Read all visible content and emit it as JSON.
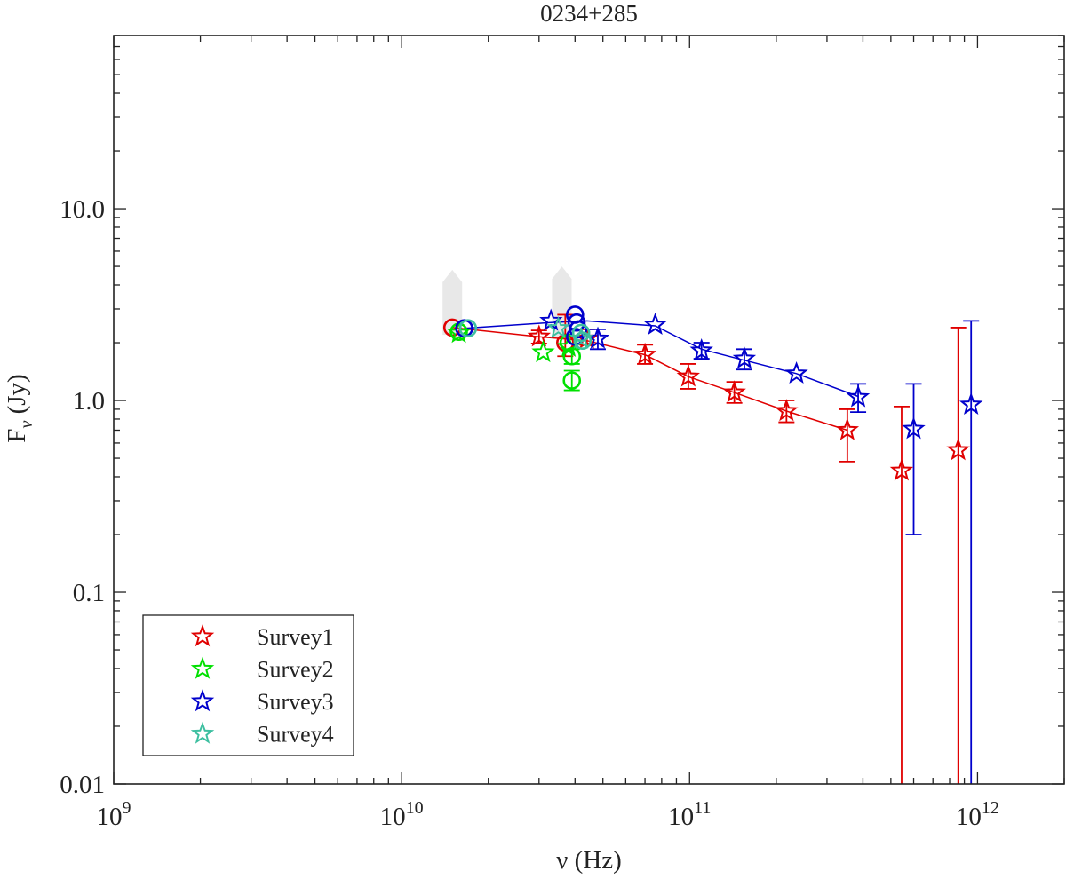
{
  "chart_data": {
    "type": "scatter",
    "title": "0234+285",
    "xlabel": "ν (Hz)",
    "ylabel": "Fν (Jy)",
    "xscale": "log",
    "yscale": "log",
    "xlim": [
      1000000000,
      2000000000000
    ],
    "ylim": [
      0.01,
      80
    ],
    "x_ticks": [
      {
        "value": 1000000000,
        "base": "10",
        "exp": "9"
      },
      {
        "value": 10000000000,
        "base": "10",
        "exp": "10"
      },
      {
        "value": 100000000000,
        "base": "10",
        "exp": "11"
      },
      {
        "value": 1000000000000,
        "base": "10",
        "exp": "12"
      }
    ],
    "y_ticks": [
      {
        "value": 0.01,
        "label": "0.01"
      },
      {
        "value": 0.1,
        "label": "0.1"
      },
      {
        "value": 1,
        "label": "1.0"
      },
      {
        "value": 10,
        "label": "10.0"
      }
    ],
    "legend": {
      "position": "bottom-left",
      "entries": [
        {
          "name": "Survey1",
          "color": "#e00000"
        },
        {
          "name": "Survey2",
          "color": "#00e000"
        },
        {
          "name": "Survey3",
          "color": "#0000cc"
        },
        {
          "name": "Survey4",
          "color": "#3dbfa0"
        }
      ]
    },
    "upper_limits": [
      {
        "x": 15000000000,
        "y_low": 2.2,
        "y_high": 4.8
      },
      {
        "x": 36000000000,
        "y_low": 2.1,
        "y_high": 5.0
      }
    ],
    "series": [
      {
        "name": "Survey1",
        "color": "#e00000",
        "line": [
          [
            15000000000,
            2.4
          ],
          [
            30000000000,
            2.15
          ],
          [
            44000000000,
            2.05
          ],
          [
            70000000000,
            1.73
          ],
          [
            99000000000,
            1.33
          ],
          [
            143000000000,
            1.1
          ],
          [
            217000000000,
            0.88
          ],
          [
            353000000000,
            0.7
          ]
        ],
        "stars": [
          {
            "x": 30000000000,
            "y": 2.15,
            "lo": 1.98,
            "hi": 2.32
          },
          {
            "x": 44000000000,
            "y": 2.1,
            "lo": 1.95,
            "hi": 2.35
          },
          {
            "x": 70000000000,
            "y": 1.73,
            "lo": 1.55,
            "hi": 1.95
          },
          {
            "x": 99000000000,
            "y": 1.33,
            "lo": 1.15,
            "hi": 1.55
          },
          {
            "x": 143000000000,
            "y": 1.1,
            "lo": 0.97,
            "hi": 1.25
          },
          {
            "x": 217000000000,
            "y": 0.88,
            "lo": 0.77,
            "hi": 1.0
          },
          {
            "x": 353000000000,
            "y": 0.7,
            "lo": 0.48,
            "hi": 0.9
          },
          {
            "x": 545000000000,
            "y": 0.43,
            "lo": 0.01,
            "hi": 0.93
          },
          {
            "x": 857000000000,
            "y": 0.55,
            "lo": 0.01,
            "hi": 2.4
          }
        ],
        "circles": [
          {
            "x": 15000000000,
            "y": 2.4
          },
          {
            "x": 37000000000,
            "y": 2.0,
            "lo": 1.7,
            "hi": 2.8
          }
        ]
      },
      {
        "name": "Survey2",
        "color": "#00e000",
        "line": [],
        "stars": [
          {
            "x": 15800000000,
            "y": 2.25
          },
          {
            "x": 31000000000,
            "y": 1.78
          },
          {
            "x": 38000000000,
            "y": 1.9
          }
        ],
        "circles": [
          {
            "x": 15800000000,
            "y": 2.28
          },
          {
            "x": 39000000000,
            "y": 1.7,
            "lo": 1.55,
            "hi": 1.85
          },
          {
            "x": 39000000000,
            "y": 1.27,
            "lo": 1.13,
            "hi": 1.43
          },
          {
            "x": 38000000000,
            "y": 2.0
          }
        ]
      },
      {
        "name": "Survey3",
        "color": "#0000cc",
        "line": [
          [
            16500000000,
            2.38
          ],
          [
            33000000000,
            2.55
          ],
          [
            44000000000,
            2.6
          ],
          [
            76000000000,
            2.45
          ],
          [
            110000000000,
            1.85
          ],
          [
            155000000000,
            1.62
          ],
          [
            235000000000,
            1.38
          ],
          [
            385000000000,
            1.05
          ]
        ],
        "stars": [
          {
            "x": 33000000000,
            "y": 2.6
          },
          {
            "x": 48000000000,
            "y": 2.1,
            "lo": 1.85,
            "hi": 2.35
          },
          {
            "x": 76000000000,
            "y": 2.48
          },
          {
            "x": 110000000000,
            "y": 1.82,
            "lo": 1.65,
            "hi": 2.0
          },
          {
            "x": 155000000000,
            "y": 1.65,
            "lo": 1.45,
            "hi": 1.85
          },
          {
            "x": 235000000000,
            "y": 1.38
          },
          {
            "x": 385000000000,
            "y": 1.04,
            "lo": 0.87,
            "hi": 1.22
          },
          {
            "x": 600000000000,
            "y": 0.71,
            "lo": 0.2,
            "hi": 1.22
          },
          {
            "x": 950000000000,
            "y": 0.95,
            "lo": 0.01,
            "hi": 2.6
          }
        ],
        "circles": [
          {
            "x": 16500000000,
            "y": 2.38
          },
          {
            "x": 40000000000,
            "y": 2.8
          },
          {
            "x": 40500000000,
            "y": 2.55
          },
          {
            "x": 41000000000,
            "y": 2.35
          },
          {
            "x": 40000000000,
            "y": 2.15
          }
        ]
      },
      {
        "name": "Survey4",
        "color": "#3dbfa0",
        "line": [],
        "stars": [
          {
            "x": 35000000000,
            "y": 2.38
          },
          {
            "x": 42000000000,
            "y": 2.1
          }
        ],
        "circles": [
          {
            "x": 17000000000,
            "y": 2.38
          },
          {
            "x": 42000000000,
            "y": 2.25
          },
          {
            "x": 42500000000,
            "y": 2.05
          }
        ]
      }
    ]
  }
}
